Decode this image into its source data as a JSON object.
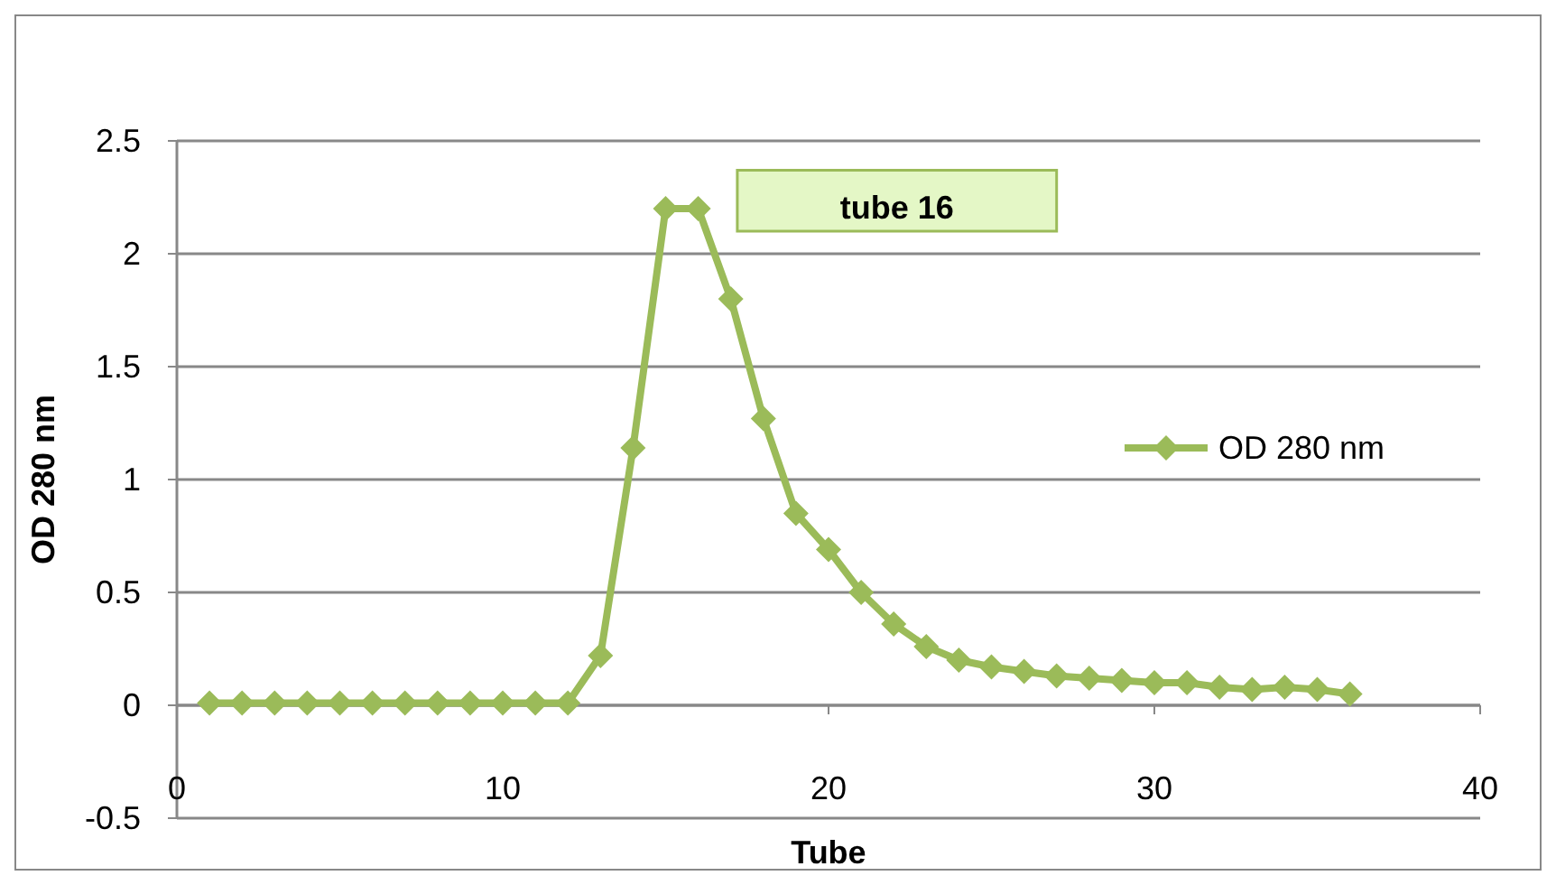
{
  "chart_data": {
    "type": "line",
    "xlabel": "Tube",
    "ylabel": "OD 280 nm",
    "x": [
      1,
      2,
      3,
      4,
      5,
      6,
      7,
      8,
      9,
      10,
      11,
      12,
      13,
      14,
      15,
      16,
      17,
      18,
      19,
      20,
      21,
      22,
      23,
      24,
      25,
      26,
      27,
      28,
      29,
      30,
      31,
      32,
      33,
      34,
      35,
      36
    ],
    "series": [
      {
        "name": "OD 280 nm",
        "color": "#9bbb59",
        "values": [
          0.01,
          0.01,
          0.01,
          0.01,
          0.01,
          0.01,
          0.01,
          0.01,
          0.01,
          0.01,
          0.01,
          0.01,
          0.22,
          1.14,
          2.2,
          2.2,
          1.8,
          1.27,
          0.85,
          0.69,
          0.5,
          0.36,
          0.26,
          0.2,
          0.17,
          0.15,
          0.13,
          0.12,
          0.11,
          0.1,
          0.1,
          0.08,
          0.07,
          0.08,
          0.07,
          0.05
        ]
      }
    ],
    "xlim": [
      0,
      40
    ],
    "xticks": [
      0,
      10,
      20,
      30,
      40
    ],
    "ylim": [
      -0.5,
      2.5
    ],
    "yticks": [
      -0.5,
      0,
      0.5,
      1,
      1.5,
      2,
      2.5
    ],
    "grid": "y",
    "legend": "right",
    "marker": "diamond",
    "line_style": "solid",
    "annotations": [
      "tube 16"
    ]
  }
}
